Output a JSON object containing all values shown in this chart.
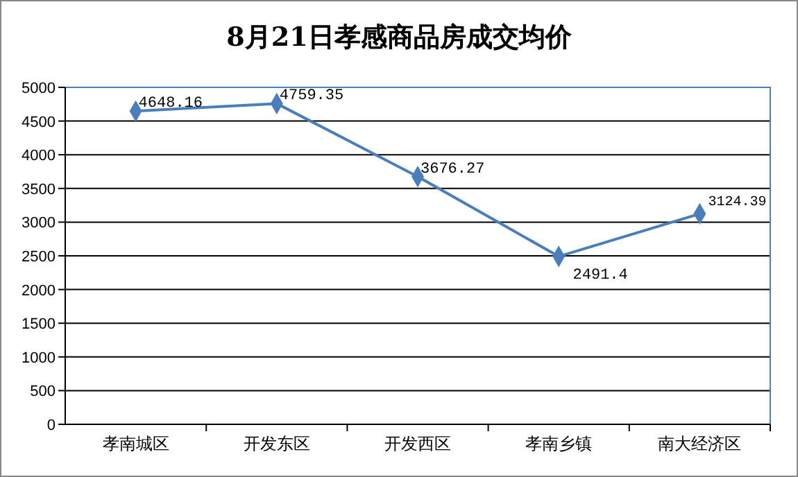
{
  "chart_data": {
    "type": "line",
    "title": "8月21日孝感商品房成交均价",
    "categories": [
      "孝南城区",
      "开发东区",
      "开发西区",
      "孝南乡镇",
      "南大经济区"
    ],
    "series": [
      {
        "color": "#4a7ebb",
        "values": [
          4648.16,
          4759.35,
          3676.27,
          2491.4,
          3124.39
        ]
      }
    ],
    "ylim": [
      0,
      5000
    ],
    "yticks": [
      0,
      500,
      1000,
      1500,
      2000,
      2500,
      3000,
      3500,
      4000,
      4500,
      5000
    ],
    "grid": "y",
    "marker": "diamond",
    "data_labels": true
  }
}
